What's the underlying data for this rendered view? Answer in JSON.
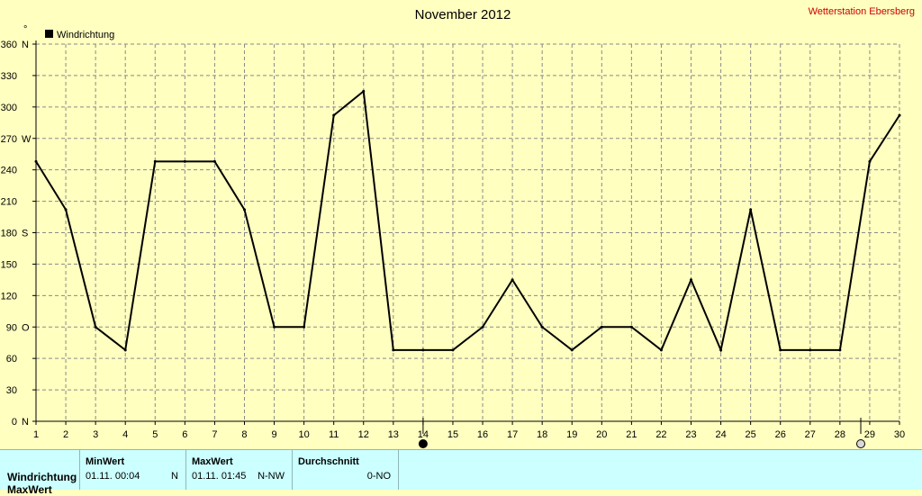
{
  "chart_data": {
    "type": "line",
    "title": "November 2012",
    "station": "Wetterstation Ebersberg",
    "unit_symbol": "°",
    "series": [
      {
        "name": "Windrichtung",
        "color": "#000000",
        "x": [
          1,
          2,
          3,
          4,
          5,
          6,
          7,
          8,
          9,
          10,
          11,
          12,
          13,
          14,
          15,
          16,
          17,
          18,
          19,
          20,
          21,
          22,
          23,
          24,
          25,
          26,
          27,
          28,
          29,
          30
        ],
        "values": [
          248,
          202,
          90,
          68,
          248,
          248,
          248,
          202,
          90,
          90,
          292,
          315,
          68,
          68,
          68,
          90,
          135,
          90,
          68,
          90,
          90,
          68,
          135,
          68,
          202,
          68,
          68,
          68,
          248,
          292
        ]
      }
    ],
    "xlim": [
      1,
      30
    ],
    "ylim": [
      0,
      360
    ],
    "yticks": [
      {
        "value": 0,
        "label": "0",
        "dir": "N"
      },
      {
        "value": 30,
        "label": "30",
        "dir": ""
      },
      {
        "value": 60,
        "label": "60",
        "dir": ""
      },
      {
        "value": 90,
        "label": "90",
        "dir": "O"
      },
      {
        "value": 120,
        "label": "120",
        "dir": ""
      },
      {
        "value": 150,
        "label": "150",
        "dir": ""
      },
      {
        "value": 180,
        "label": "180",
        "dir": "S"
      },
      {
        "value": 210,
        "label": "210",
        "dir": ""
      },
      {
        "value": 240,
        "label": "240",
        "dir": ""
      },
      {
        "value": 270,
        "label": "270",
        "dir": "W"
      },
      {
        "value": 300,
        "label": "300",
        "dir": ""
      },
      {
        "value": 330,
        "label": "330",
        "dir": ""
      },
      {
        "value": 360,
        "label": "360",
        "dir": "N"
      }
    ],
    "xticks": [
      "1",
      "2",
      "3",
      "4",
      "5",
      "6",
      "7",
      "8",
      "9",
      "10",
      "11",
      "12",
      "13",
      "14",
      "15",
      "16",
      "17",
      "18",
      "19",
      "20",
      "21",
      "22",
      "23",
      "24",
      "25",
      "26",
      "27",
      "28",
      "29",
      "30"
    ],
    "grid": true,
    "legend_position": "top-left",
    "moon_markers": [
      {
        "day": 14,
        "phase": "new-moon"
      },
      {
        "day": 28.7,
        "phase": "full-moon"
      }
    ]
  },
  "table": {
    "row_label": "Windrichtung",
    "row_label_2": "MaxWert",
    "headers": {
      "min": "MinWert",
      "max": "MaxWert",
      "avg": "Durchschnitt"
    },
    "min": {
      "datetime": "01.11.  00:04",
      "dir": "N"
    },
    "max": {
      "datetime": "01.11.  01:45",
      "dir": "N-NW"
    },
    "avg": {
      "dir": "0-NO"
    }
  }
}
